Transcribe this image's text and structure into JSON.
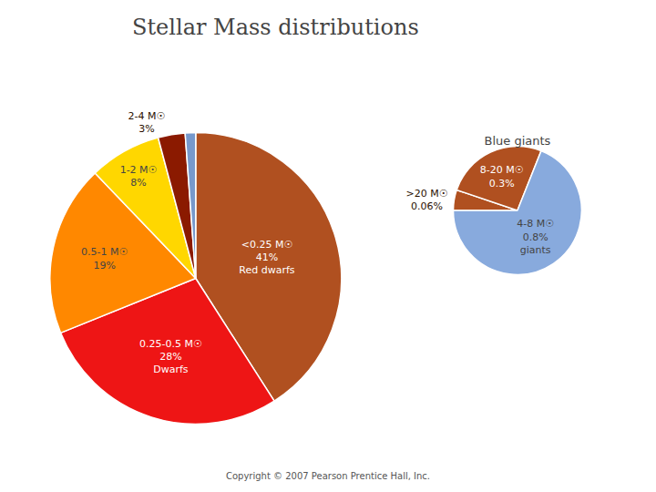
{
  "chart_data": [
    {
      "type": "pie",
      "title": "Stellar Mass distributions",
      "categories": [
        "<0.25 M☉",
        "0.25-0.5 M☉",
        "0.5-1 M☉",
        "1-2 M☉",
        "2-4 M☉",
        null
      ],
      "values": [
        41,
        28,
        19,
        8,
        3,
        1.16
      ],
      "value_labels": [
        "41%",
        "28%",
        "19%",
        "8%",
        "3%",
        null
      ],
      "colors": [
        "#B05020",
        "#EE1515",
        "#FF8800",
        "#FFD700",
        "#8B1A00",
        "#7799CC"
      ],
      "data_labels": true,
      "legend": false,
      "annotations": [
        {
          "text": "Red dwarfs",
          "category": "<0.25 M☉"
        },
        {
          "text": "Dwarfs",
          "category": "0.25-0.5 M☉"
        },
        {
          "text": "Copyright © 2007 Pearson Prentice Hall, Inc."
        }
      ]
    },
    {
      "type": "pie",
      "title": "Blue giants",
      "categories": [
        ">20 M☉",
        "8-20 M☉",
        "4-8 M☉"
      ],
      "values": [
        0.06,
        0.3,
        0.8
      ],
      "value_labels": [
        "0.06%",
        "0.3%",
        "0.8%"
      ],
      "colors": [
        "#B05020",
        "#B05020",
        "#88AADD"
      ],
      "data_labels": true,
      "legend": false,
      "annotations": [
        {
          "text": "giants",
          "category": "4-8 M☉"
        }
      ]
    }
  ]
}
